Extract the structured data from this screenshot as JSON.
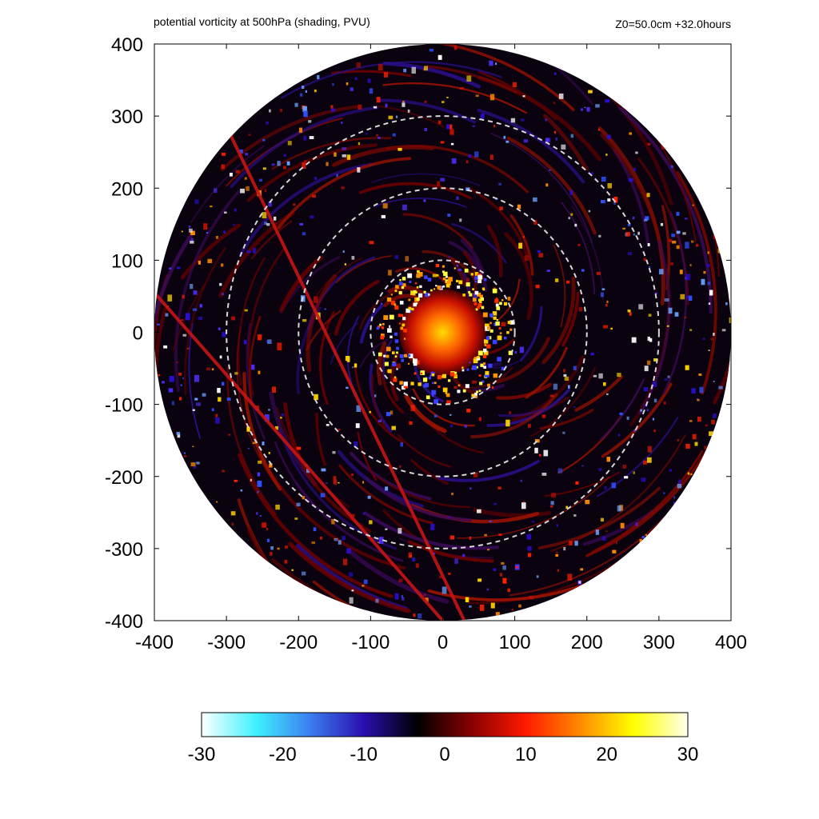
{
  "header": {
    "title": "potential vorticity at 500hPa (shading, PVU)",
    "run_info": "Z0=50.0cm  +32.0hours"
  },
  "chart_data": {
    "type": "heatmap",
    "title": "potential vorticity at 500hPa (shading, PVU)",
    "subtitle": "Z0=50.0cm  +32.0hours",
    "xlabel": "",
    "ylabel": "",
    "xlim": [
      -400,
      400
    ],
    "ylim": [
      -400,
      400
    ],
    "x_ticks": [
      -400,
      -300,
      -200,
      -100,
      0,
      100,
      200,
      300,
      400
    ],
    "y_ticks": [
      -400,
      -300,
      -200,
      -100,
      0,
      100,
      200,
      300,
      400
    ],
    "domain_radius": 400,
    "range_rings": [
      100,
      200,
      300
    ],
    "colorbar": {
      "min": -30,
      "max": 30,
      "ticks": [
        -30,
        -20,
        -10,
        0,
        10,
        20,
        30
      ],
      "colors": [
        "#ffffff",
        "#3ff2ff",
        "#3b7ff0",
        "#2a0fb0",
        "#000000",
        "#8a0000",
        "#ff1a00",
        "#ff8a00",
        "#ffff00",
        "#ffffee"
      ]
    },
    "features": [
      {
        "name": "vortex core",
        "center": [
          0,
          0
        ],
        "radius": 60,
        "peak_value": 25
      },
      {
        "name": "line 1",
        "from": [
          -295,
          275
        ],
        "to": [
          30,
          -400
        ]
      },
      {
        "name": "line 2",
        "from": [
          -400,
          55
        ],
        "to": [
          0,
          -400
        ]
      }
    ],
    "grid": false
  }
}
